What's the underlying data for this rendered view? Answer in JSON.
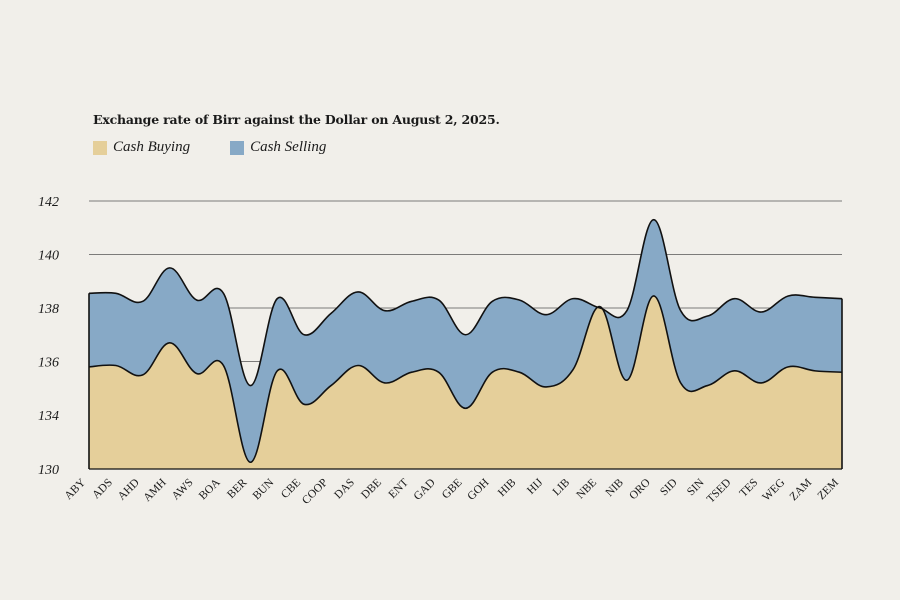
{
  "colors": {
    "background": "#f1efea",
    "cash_buying": "#e5cf9a",
    "cash_selling": "#87a9c6",
    "outline": "#111111",
    "grid": "#555555"
  },
  "chart_data": {
    "type": "area",
    "title": "Exchange rate of Birr against the Dollar on August 2, 2025.",
    "xlabel": "",
    "ylabel": "",
    "ylim": [
      130,
      142
    ],
    "y_ticks": [
      130,
      134,
      136,
      138,
      140,
      142
    ],
    "legend_position": "top-left",
    "categories": [
      "ABY",
      "ADS",
      "AHD",
      "AMH",
      "AWS",
      "BOA",
      "BER",
      "BUN",
      "CBE",
      "COOP",
      "DAS",
      "DBE",
      "ENT",
      "GAD",
      "GBE",
      "GOH",
      "HIB",
      "HIJ",
      "LIB",
      "NBE",
      "NIB",
      "ORO",
      "SID",
      "SIN",
      "TSED",
      "TES",
      "WEG",
      "ZAM",
      "ZEM"
    ],
    "series": [
      {
        "name": "Cash Buying",
        "values": [
          135.8,
          135.85,
          135.5,
          136.7,
          135.55,
          135.85,
          130.5,
          135.65,
          134.4,
          135.1,
          135.85,
          135.2,
          135.6,
          135.6,
          134.25,
          135.6,
          135.6,
          135.05,
          135.7,
          138.05,
          135.3,
          138.45,
          135.2,
          135.1,
          135.65,
          135.2,
          135.8,
          135.65,
          135.6
        ]
      },
      {
        "name": "Cash Selling",
        "values": [
          138.55,
          138.55,
          138.25,
          139.5,
          138.3,
          138.55,
          135.1,
          138.35,
          137.0,
          137.8,
          138.6,
          137.9,
          138.25,
          138.3,
          137.0,
          138.25,
          138.3,
          137.75,
          138.35,
          138.0,
          137.9,
          141.3,
          137.9,
          137.7,
          138.35,
          137.85,
          138.45,
          138.4,
          138.35
        ]
      }
    ]
  }
}
